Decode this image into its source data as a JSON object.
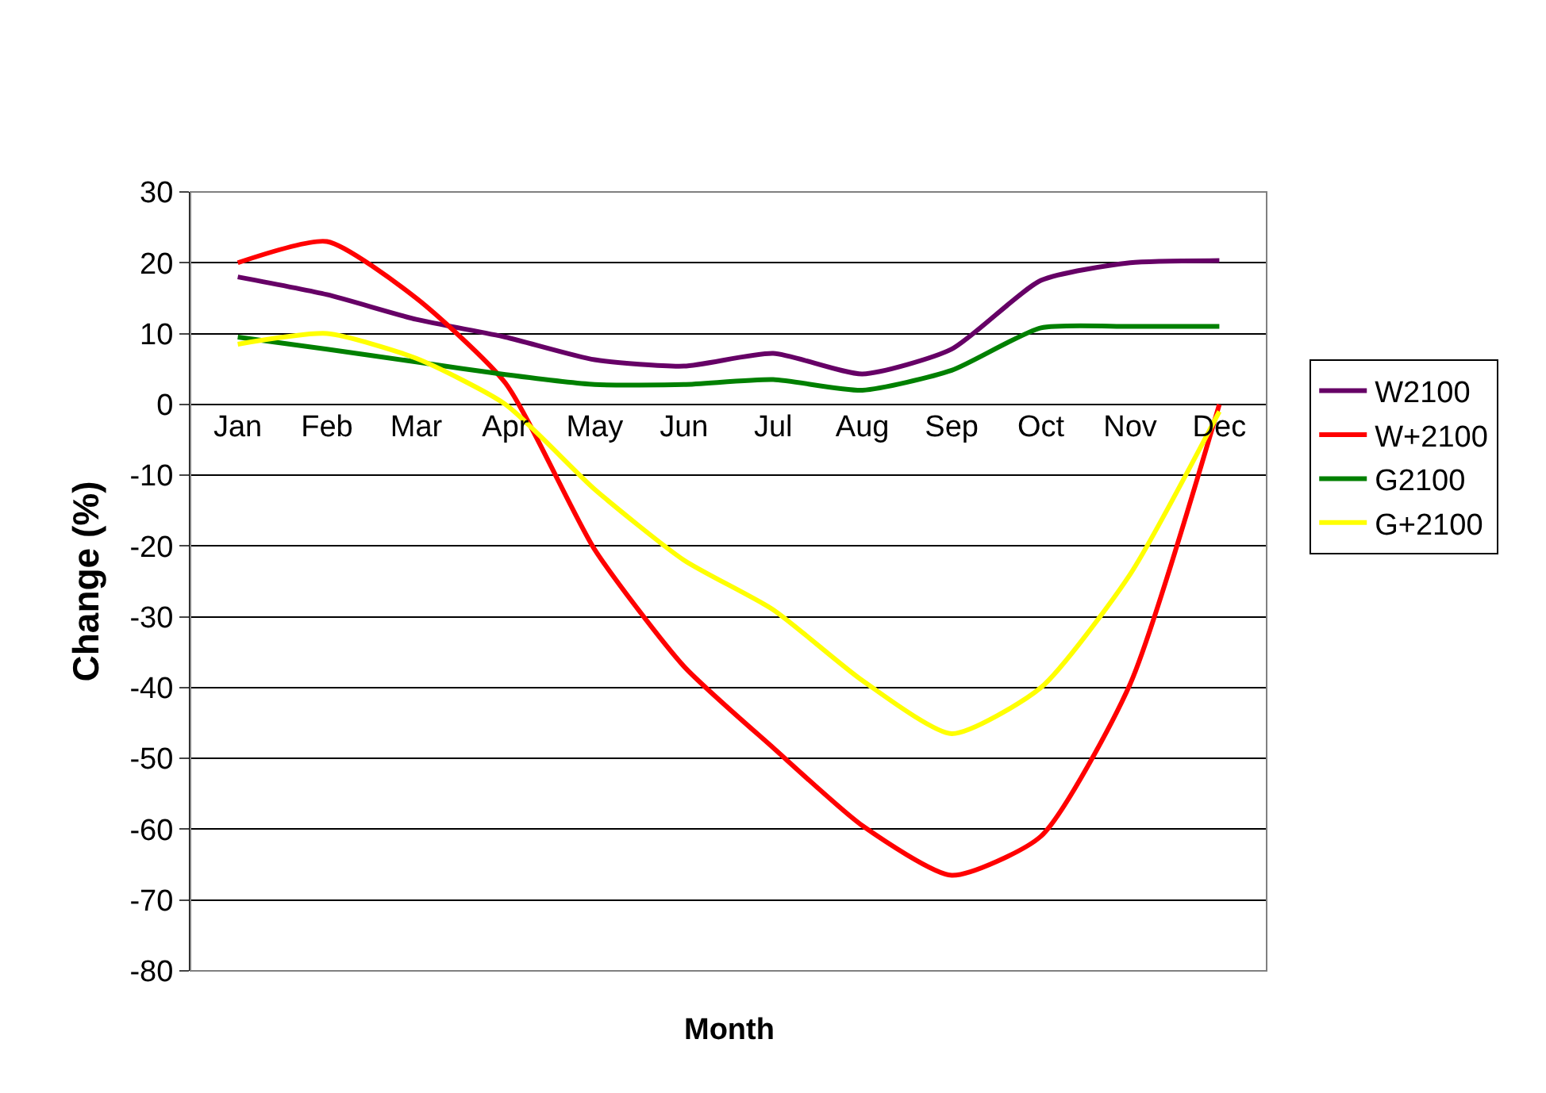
{
  "chart_data": {
    "type": "line",
    "xlabel": "Month",
    "ylabel": "Change (%)",
    "categories": [
      "Jan",
      "Feb",
      "Mar",
      "Apr",
      "May",
      "Jun",
      "Jul",
      "Aug",
      "Sep",
      "Oct",
      "Nov",
      "Dec"
    ],
    "series": [
      {
        "name": "W2100",
        "color": "#660066",
        "values": [
          18,
          15.5,
          12,
          9.5,
          6.3,
          5.4,
          7.2,
          4.3,
          7.8,
          17.5,
          20,
          20.3
        ]
      },
      {
        "name": "W+2100",
        "color": "#ff0000",
        "values": [
          20,
          23,
          15,
          3,
          -20.5,
          -37,
          -48.5,
          -59.5,
          -66.5,
          -61,
          -39.5,
          0
        ]
      },
      {
        "name": "G2100",
        "color": "#008000",
        "values": [
          9.5,
          7.8,
          6,
          4.2,
          2.8,
          2.8,
          3.5,
          2,
          4.8,
          10.8,
          11,
          11
        ]
      },
      {
        "name": "G+2100",
        "color": "#ffff00",
        "values": [
          8.5,
          10,
          6.5,
          0,
          -12,
          -22,
          -29,
          -39,
          -46.5,
          -40,
          -24,
          -1
        ]
      }
    ],
    "ylim": [
      -80,
      30
    ],
    "yticks": [
      -80,
      -70,
      -60,
      -50,
      -40,
      -30,
      -20,
      -10,
      0,
      10,
      20,
      30
    ],
    "grid": "y",
    "legend": "right",
    "marker": "none",
    "line_style": "solid"
  }
}
